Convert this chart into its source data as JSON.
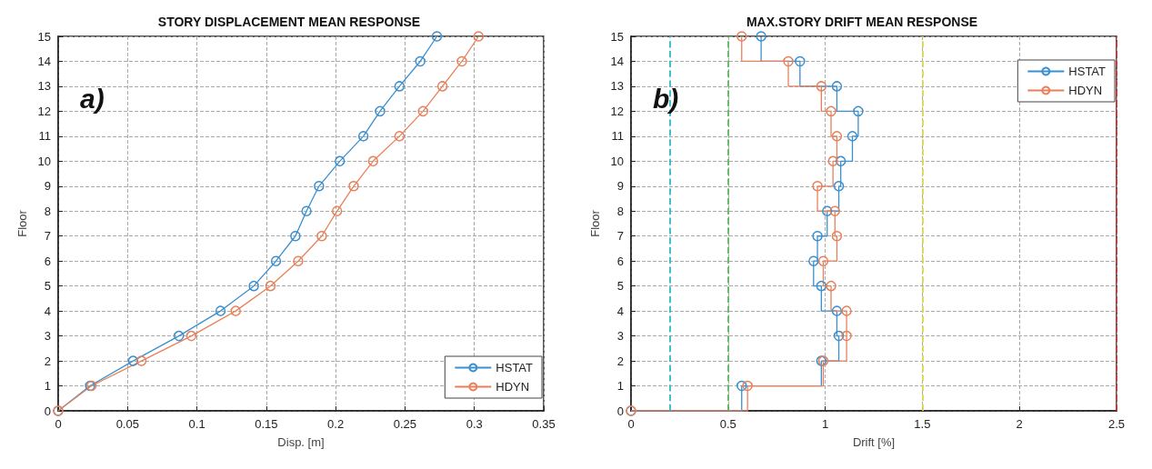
{
  "chart_data": [
    {
      "type": "line",
      "title": "STORY DISPLACEMENT MEAN RESPONSE",
      "xlabel": "Disp. [m]",
      "ylabel": "Floor",
      "annotations": [
        "a)"
      ],
      "xlim": [
        0,
        0.35
      ],
      "xticks": [
        0,
        0.05,
        0.1,
        0.15,
        0.2,
        0.25,
        0.3,
        0.35
      ],
      "ylim": [
        0,
        15
      ],
      "yticks": [
        0,
        1,
        2,
        3,
        4,
        5,
        6,
        7,
        8,
        9,
        10,
        11,
        12,
        13,
        14,
        15
      ],
      "grid": true,
      "legend": "bottom right",
      "marker": "circle",
      "line_style": "solid",
      "series": [
        {
          "name": "HSTAT",
          "color": "#3a8fd0",
          "x": [
            0,
            0.023,
            0.054,
            0.087,
            0.117,
            0.141,
            0.157,
            0.171,
            0.179,
            0.188,
            0.203,
            0.22,
            0.232,
            0.246,
            0.261,
            0.273
          ],
          "values": [
            0,
            1,
            2,
            3,
            4,
            5,
            6,
            7,
            8,
            9,
            10,
            11,
            12,
            13,
            14,
            15
          ]
        },
        {
          "name": "HDYN",
          "color": "#e8805a",
          "x": [
            0,
            0.024,
            0.06,
            0.096,
            0.128,
            0.153,
            0.173,
            0.19,
            0.201,
            0.213,
            0.227,
            0.246,
            0.263,
            0.277,
            0.291,
            0.303
          ],
          "values": [
            0,
            1,
            2,
            3,
            4,
            5,
            6,
            7,
            8,
            9,
            10,
            11,
            12,
            13,
            14,
            15
          ]
        }
      ]
    },
    {
      "type": "step",
      "title": "MAX.STORY DRIFT MEAN RESPONSE",
      "xlabel": "Drift [%]",
      "ylabel": "Floor",
      "annotations": [
        "b)"
      ],
      "xlim": [
        0,
        2.5
      ],
      "xticks": [
        0,
        0.5,
        1,
        1.5,
        2,
        2.5
      ],
      "ylim": [
        0,
        15
      ],
      "yticks": [
        0,
        1,
        2,
        3,
        4,
        5,
        6,
        7,
        8,
        9,
        10,
        11,
        12,
        13,
        14,
        15
      ],
      "grid": true,
      "legend": "top right",
      "marker": "circle",
      "line_style": "solid",
      "ref_lines": [
        {
          "axis": "x",
          "value": 0.2,
          "color": "#30b8c8",
          "line_style": "dashed"
        },
        {
          "axis": "x",
          "value": 0.5,
          "color": "#5cb85c",
          "line_style": "dashed"
        },
        {
          "axis": "x",
          "value": 1.5,
          "color": "#e0d850",
          "line_style": "dashed"
        },
        {
          "axis": "x",
          "value": 2.5,
          "color": "#e03030",
          "line_style": "dashed"
        }
      ],
      "series": [
        {
          "name": "HSTAT",
          "color": "#3a8fd0",
          "x": [
            0,
            0.57,
            0.98,
            1.07,
            1.06,
            0.98,
            0.94,
            0.96,
            1.01,
            1.07,
            1.08,
            1.14,
            1.17,
            1.06,
            0.87,
            0.67
          ],
          "values": [
            0,
            1,
            2,
            3,
            4,
            5,
            6,
            7,
            8,
            9,
            10,
            11,
            12,
            13,
            14,
            15
          ]
        },
        {
          "name": "HDYN",
          "color": "#e8805a",
          "x": [
            0,
            0.6,
            0.99,
            1.11,
            1.11,
            1.03,
            0.99,
            1.06,
            1.05,
            0.96,
            1.04,
            1.06,
            1.03,
            0.98,
            0.81,
            0.57
          ],
          "values": [
            0,
            1,
            2,
            3,
            4,
            5,
            6,
            7,
            8,
            9,
            10,
            11,
            12,
            13,
            14,
            15
          ]
        }
      ]
    }
  ]
}
